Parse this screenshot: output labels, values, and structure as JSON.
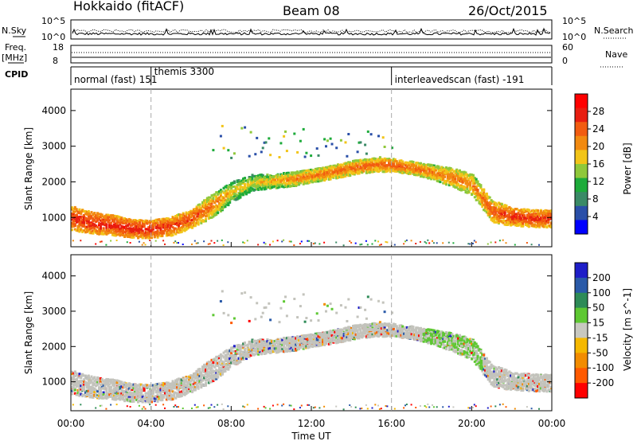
{
  "header": {
    "title": "Hokkaido (fitACF)",
    "beam": "Beam 08",
    "date": "26/Oct/2015"
  },
  "strips": {
    "nsky_label": "N.Sky",
    "nsky_ticks": [
      "10^5",
      "10^0"
    ],
    "nsearch_label": "N.Search",
    "freq_label": "Freq.",
    "freq_unit": "[MHz]",
    "freq_ticks": [
      "18",
      "8"
    ],
    "nave_label": "Nave",
    "nave_ticks": [
      "60",
      "0"
    ],
    "cpid_label": "CPID",
    "cpid_segments": [
      {
        "start_hour": 0,
        "end_hour": 4,
        "text": "normal (fast) 151"
      },
      {
        "start_hour": 4,
        "end_hour": 16,
        "text": "themis 3300"
      },
      {
        "start_hour": 16,
        "end_hour": 24,
        "text": "interleavedscan (fast) -191"
      }
    ]
  },
  "colors": {
    "power": [
      "#0000ff",
      "#2a4fa8",
      "#3a8a66",
      "#1dab3a",
      "#8fc83a",
      "#f2c418",
      "#f28a10",
      "#f25c10",
      "#e81e10",
      "#ff0000"
    ],
    "velocity": [
      "#ff0000",
      "#ff5a00",
      "#f28c00",
      "#f5b800",
      "#c8c8c0",
      "#5ec832",
      "#2e8b57",
      "#2a5aa8",
      "#1e1ec8"
    ],
    "ground": "#c3c3bc",
    "dashed": "#aaaaaa"
  },
  "chart_data": [
    {
      "type": "heatmap",
      "panel": "power",
      "ylabel": "Slant Range [km]",
      "ylim": [
        180,
        4600
      ],
      "yticks": [
        1000,
        2000,
        3000,
        4000
      ],
      "colorbar": {
        "label": "Power [dB]",
        "ticks": [
          4,
          8,
          12,
          16,
          20,
          24,
          28
        ],
        "range": [
          0,
          32
        ]
      },
      "x_hours": [
        0,
        1,
        2,
        3,
        4,
        5,
        6,
        7,
        8,
        9,
        10,
        11,
        12,
        13,
        14,
        15,
        16,
        17,
        18,
        19,
        20,
        21,
        22,
        23,
        24
      ],
      "band_center_km": [
        1020,
        880,
        820,
        720,
        700,
        790,
        1000,
        1350,
        1750,
        2000,
        2050,
        2100,
        2200,
        2300,
        2420,
        2500,
        2500,
        2420,
        2300,
        2150,
        1950,
        1200,
        1050,
        1000,
        1000
      ],
      "band_halfwidth_km": [
        350,
        300,
        280,
        260,
        250,
        260,
        260,
        330,
        280,
        230,
        200,
        200,
        180,
        190,
        200,
        190,
        180,
        180,
        200,
        260,
        300,
        300,
        260,
        240,
        240
      ],
      "band_power_db": [
        27,
        28,
        28,
        28,
        28,
        27,
        26,
        23,
        19,
        18,
        20,
        22,
        23,
        24,
        24,
        24,
        25,
        24,
        23,
        23,
        22,
        25,
        27,
        27,
        27
      ]
    },
    {
      "type": "heatmap",
      "panel": "velocity",
      "ylabel": "Slant Range [km]",
      "xlabel": "Time UT",
      "ylim": [
        180,
        4600
      ],
      "yticks": [
        1000,
        2000,
        3000,
        4000
      ],
      "xticks": [
        "00:00",
        "04:00",
        "08:00",
        "12:00",
        "16:00",
        "20:00",
        "00:00"
      ],
      "colorbar": {
        "label": "Velocity [m s^-1]",
        "ticks": [
          -200,
          -100,
          -50,
          -15,
          15,
          50,
          100,
          200
        ]
      },
      "ground_scatter_fraction": 0.85
    }
  ],
  "annotations": {
    "dashed_lines_hour": [
      4,
      16
    ]
  }
}
